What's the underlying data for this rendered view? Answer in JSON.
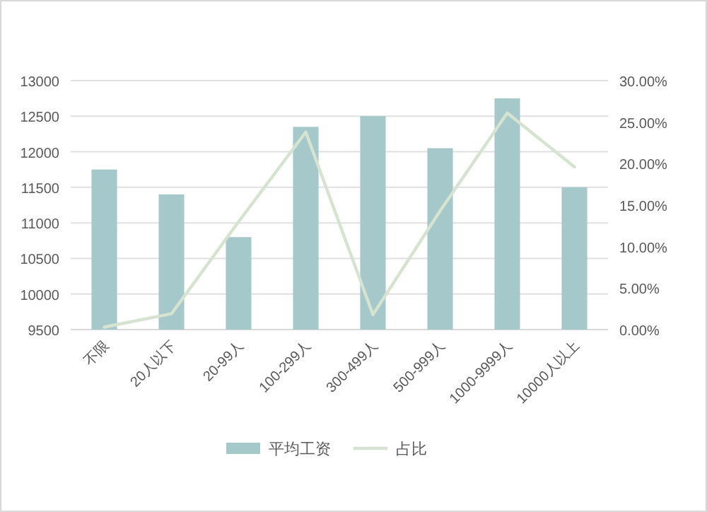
{
  "chart_data": {
    "type": "bar",
    "categories": [
      "不限",
      "20人以下",
      "20-99人",
      "100-299人",
      "300-499人",
      "500-999人",
      "1000-9999人",
      "10000人以上"
    ],
    "series": [
      {
        "name": "平均工资",
        "color": "#a5c8ca",
        "values": [
          11750,
          11400,
          10800,
          12350,
          12500,
          12050,
          12750,
          11500
        ]
      },
      {
        "name": "占比",
        "type": "line",
        "axis": "y2",
        "color": "#d5e3d0",
        "values": [
          0.3,
          1.9,
          13,
          23.8,
          1.8,
          14.3,
          26.1,
          19.6
        ]
      }
    ],
    "ylim": [
      9500,
      13000
    ],
    "yticks": [
      9500,
      10000,
      10500,
      11000,
      11500,
      12000,
      12500,
      13000
    ],
    "y2lim": [
      0,
      30
    ],
    "y2ticks": [
      {
        "value": 0,
        "label": "0.00%"
      },
      {
        "value": 5,
        "label": "5.00%"
      },
      {
        "value": 10,
        "label": "10.00%"
      },
      {
        "value": 15,
        "label": "15.00%"
      },
      {
        "value": 20,
        "label": "20.00%"
      },
      {
        "value": 25,
        "label": "25.00%"
      },
      {
        "value": 30,
        "label": "30.00%"
      }
    ],
    "grid": "y",
    "legend": "bottom",
    "marker": "none",
    "line_style": "solid"
  }
}
